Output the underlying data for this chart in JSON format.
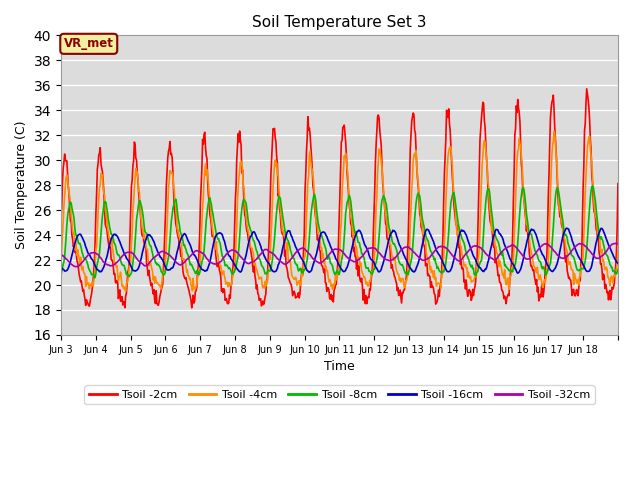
{
  "title": "Soil Temperature Set 3",
  "xlabel": "Time",
  "ylabel": "Soil Temperature (C)",
  "ylim": [
    16,
    40
  ],
  "yticks": [
    16,
    18,
    20,
    22,
    24,
    26,
    28,
    30,
    32,
    34,
    36,
    38,
    40
  ],
  "background_color": "#dcdcdc",
  "annotation_text": "VR_met",
  "annotation_color": "#8B0000",
  "annotation_bg": "#f0f0a0",
  "series_colors": [
    "#ff0000",
    "#ff8c00",
    "#00bb00",
    "#0000cc",
    "#aa00aa"
  ],
  "series_labels": [
    "Tsoil -2cm",
    "Tsoil -4cm",
    "Tsoil -8cm",
    "Tsoil -16cm",
    "Tsoil -32cm"
  ],
  "series_lw": [
    1.2,
    1.2,
    1.2,
    1.2,
    1.2
  ],
  "xtick_labels": [
    "Jun 3",
    "Jun 4",
    "Jun 5",
    "Jun 6",
    "Jun 7",
    "Jun 8",
    "Jun 9",
    "Jun 10",
    "Jun 11",
    "Jun 12",
    "Jun 13",
    "Jun 14",
    "Jun 15",
    "Jun 16",
    "Jun 17",
    "Jun 18"
  ],
  "n_days": 16,
  "start_day": 3,
  "points_per_day": 48
}
